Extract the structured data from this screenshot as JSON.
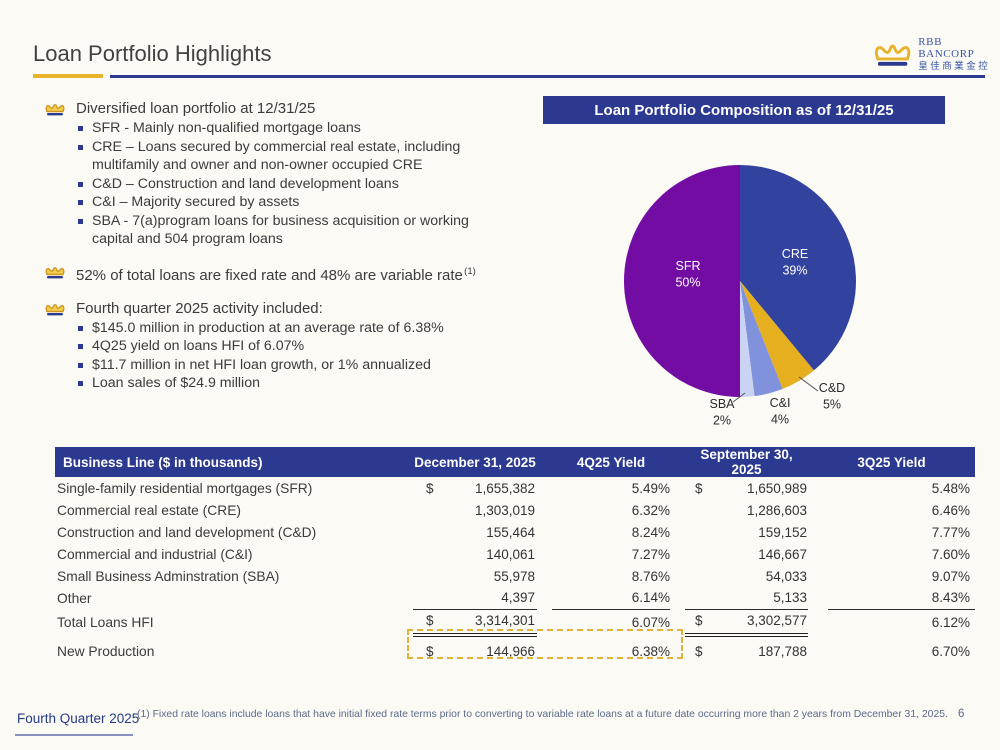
{
  "header": {
    "title": "Loan Portfolio Highlights",
    "logo": {
      "name": "RBB BANCORP",
      "chinese": "皇佳商業金控"
    }
  },
  "bullets": {
    "b1": {
      "text": "Diversified loan portfolio at 12/31/25",
      "subs": [
        "SFR - Mainly non-qualified mortgage loans",
        "CRE – Loans secured by commercial real estate, including multifamily and owner and non-owner occupied CRE",
        "C&D – Construction and land development loans",
        "C&I – Majority secured by assets",
        "SBA - 7(a)program  loans for business acquisition or working capital and 504 program loans"
      ]
    },
    "b2": {
      "text": "52% of total loans are fixed rate and 48% are variable rate",
      "sup": "(1)"
    },
    "b3": {
      "text": "Fourth quarter 2025 activity included:",
      "subs": [
        "$145.0 million in production at an average rate of 6.38%",
        "4Q25 yield on loans HFI of 6.07%",
        "$11.7 million in net HFI loan growth, or 1% annualized",
        "Loan sales of $24.9 million"
      ]
    }
  },
  "chart_data": {
    "type": "pie",
    "title": "Loan Portfolio Composition as of 12/31/25",
    "start_angle_deg": 0,
    "direction": "clockwise",
    "series": [
      {
        "label": "CRE",
        "pct_label": "39%",
        "value": 39,
        "color": "#31439E"
      },
      {
        "label": "C&D",
        "pct_label": "5%",
        "value": 5,
        "color": "#E6AF20"
      },
      {
        "label": "C&I",
        "pct_label": "4%",
        "value": 4,
        "color": "#8092DB"
      },
      {
        "label": "SBA",
        "pct_label": "2%",
        "value": 2,
        "color": "#CBD3F2"
      },
      {
        "label": "SFR",
        "pct_label": "50%",
        "value": 50,
        "color": "#720CA2"
      }
    ]
  },
  "table": {
    "headers": [
      "Business Line ($ in thousands)",
      "December 31, 2025",
      "4Q25 Yield",
      "September 30, 2025",
      "3Q25 Yield"
    ],
    "rows": [
      {
        "label": "Single-family residential mortgages (SFR)",
        "d1": "$",
        "v1": "1,655,382",
        "y1": "5.49%",
        "d2": "$",
        "v2": "1,650,989",
        "y2": "5.48%"
      },
      {
        "label": "Commercial real estate (CRE)",
        "d1": "",
        "v1": "1,303,019",
        "y1": "6.32%",
        "d2": "",
        "v2": "1,286,603",
        "y2": "6.46%"
      },
      {
        "label": "Construction and land development (C&D)",
        "d1": "",
        "v1": "155,464",
        "y1": "8.24%",
        "d2": "",
        "v2": "159,152",
        "y2": "7.77%"
      },
      {
        "label": "Commercial and industrial (C&I)",
        "d1": "",
        "v1": "140,061",
        "y1": "7.27%",
        "d2": "",
        "v2": "146,667",
        "y2": "7.60%"
      },
      {
        "label": "Small Business Adminstration (SBA)",
        "d1": "",
        "v1": "55,978",
        "y1": "8.76%",
        "d2": "",
        "v2": "54,033",
        "y2": "9.07%"
      },
      {
        "label": "Other",
        "d1": "",
        "v1": "4,397",
        "y1": "6.14%",
        "d2": "",
        "v2": "5,133",
        "y2": "8.43%",
        "rule_below": true
      },
      {
        "label": "Total Loans HFI",
        "d1": "$",
        "v1": "3,314,301",
        "y1": "6.07%",
        "d2": "$",
        "v2": "3,302,577",
        "y2": "6.12%",
        "double_below": true
      },
      {
        "label": "New Production",
        "d1": "$",
        "v1": "144,966",
        "y1": "6.38%",
        "d2": "$",
        "v2": "187,788",
        "y2": "6.70%",
        "highlight": true
      }
    ]
  },
  "footer": {
    "quarter": "Fourth Quarter 2025",
    "footnote": "(1) Fixed rate loans include loans that have initial fixed rate terms prior to converting to variable rate loans at  a future date occurring more than 2 years from December 31, 2025.",
    "page": "6"
  }
}
